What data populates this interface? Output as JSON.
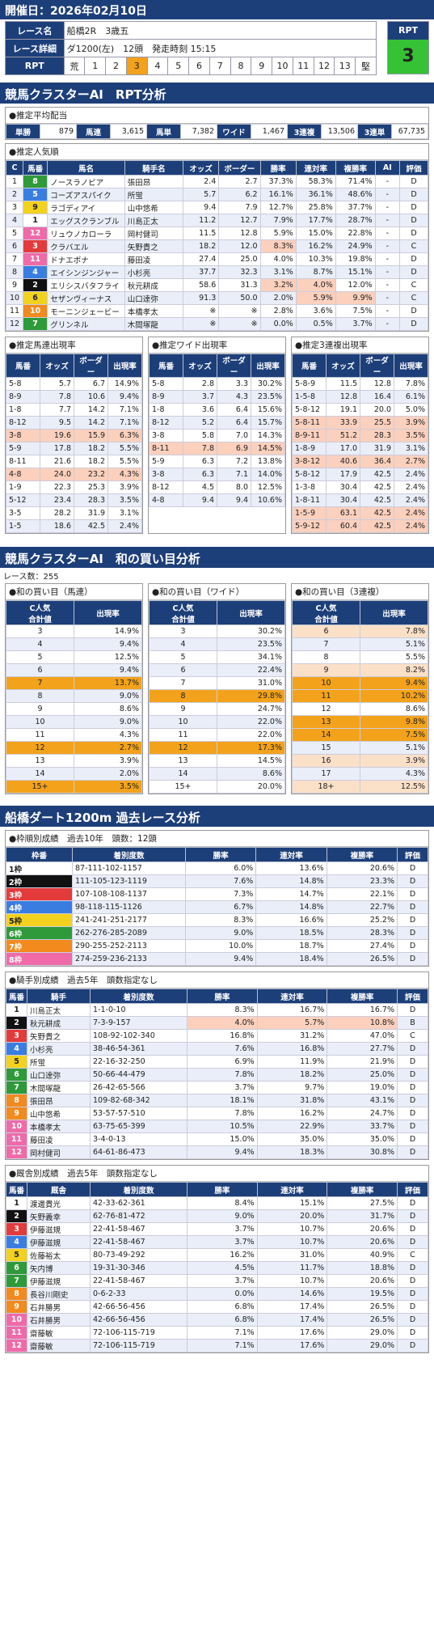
{
  "header": {
    "date": "開催日：2026年02月10日"
  },
  "race": {
    "label_name": "レース名",
    "name": "船橋2R　3歳五",
    "label_detail": "レース詳細",
    "detail": "ダ1200(左)　12頭　発走時刻 15:15",
    "label_rpt": "RPT",
    "scale_left": "荒",
    "scale_right": "堅",
    "scale": [
      "1",
      "2",
      "3",
      "4",
      "5",
      "6",
      "7",
      "8",
      "9",
      "10",
      "11",
      "12",
      "13"
    ],
    "selected": "3",
    "rpt_title": "RPT",
    "rpt_value": "3"
  },
  "sec1": {
    "title": "競馬クラスターAI　RPT分析"
  },
  "payout": {
    "title": "●推定平均配当",
    "items": [
      {
        "k": "単勝",
        "v": "879"
      },
      {
        "k": "馬連",
        "v": "3,615"
      },
      {
        "k": "馬単",
        "v": "7,382"
      },
      {
        "k": "ワイド",
        "v": "1,467"
      },
      {
        "k": "3連複",
        "v": "13,506"
      },
      {
        "k": "3連単",
        "v": "67,735"
      }
    ]
  },
  "pop": {
    "title": "●推定人気順",
    "headers": [
      "C",
      "馬番",
      "馬名",
      "騎手名",
      "オッズ",
      "ボーダー",
      "勝率",
      "連対率",
      "複勝率",
      "AI",
      "評価"
    ],
    "rows": [
      [
        "1",
        "8",
        "ノースラノビア",
        "張田昂",
        "2.4",
        "2.7",
        "37.3%",
        "58.3%",
        "71.4%",
        "-",
        "D"
      ],
      [
        "2",
        "5",
        "コーズアスパイク",
        "所蛍",
        "5.7",
        "6.2",
        "16.1%",
        "36.1%",
        "48.6%",
        "-",
        "D"
      ],
      [
        "3",
        "9",
        "ラゴディアイ",
        "山中悠希",
        "9.4",
        "7.9",
        "12.7%",
        "25.8%",
        "37.7%",
        "-",
        "D"
      ],
      [
        "4",
        "1",
        "エッグスクランブル",
        "川島正太",
        "11.2",
        "12.7",
        "7.9%",
        "17.7%",
        "28.7%",
        "-",
        "D"
      ],
      [
        "5",
        "12",
        "リュウノカローラ",
        "岡村健司",
        "11.5",
        "12.8",
        "5.9%",
        "15.0%",
        "22.8%",
        "-",
        "D"
      ],
      [
        "6",
        "3",
        "クラバエル",
        "矢野貴之",
        "18.2",
        "12.0",
        "8.3%",
        "16.2%",
        "24.9%",
        "-",
        "C"
      ],
      [
        "7",
        "11",
        "ドナエポナ",
        "藤田凌",
        "27.4",
        "25.0",
        "4.0%",
        "10.3%",
        "19.8%",
        "-",
        "D"
      ],
      [
        "8",
        "4",
        "エイシンジンジャー",
        "小杉亮",
        "37.7",
        "32.3",
        "3.1%",
        "8.7%",
        "15.1%",
        "-",
        "D"
      ],
      [
        "9",
        "2",
        "エリシスバタフライ",
        "秋元耕成",
        "58.6",
        "31.3",
        "3.2%",
        "4.0%",
        "12.0%",
        "-",
        "C"
      ],
      [
        "10",
        "6",
        "セザンヴィーナス",
        "山口達弥",
        "91.3",
        "50.0",
        "2.0%",
        "5.9%",
        "9.9%",
        "-",
        "C"
      ],
      [
        "11",
        "10",
        "モーニンジェービー",
        "本橋孝太",
        "※",
        "※",
        "2.8%",
        "3.6%",
        "7.5%",
        "-",
        "D"
      ],
      [
        "12",
        "7",
        "グリンネル",
        "木間塚龍",
        "※",
        "※",
        "0.0%",
        "0.5%",
        "3.7%",
        "-",
        "D"
      ]
    ]
  },
  "est3": [
    {
      "title": "●推定馬連出現率",
      "headers": [
        "馬番",
        "オッズ",
        "ボーダー",
        "出現率"
      ],
      "rows": [
        [
          "5-8",
          "5.7",
          "6.7",
          "14.9%"
        ],
        [
          "8-9",
          "7.8",
          "10.6",
          "9.4%"
        ],
        [
          "1-8",
          "7.7",
          "14.2",
          "7.1%"
        ],
        [
          "8-12",
          "9.5",
          "14.2",
          "7.1%"
        ],
        [
          "3-8",
          "19.6",
          "15.9",
          "6.3%"
        ],
        [
          "5-9",
          "17.8",
          "18.2",
          "5.5%"
        ],
        [
          "8-11",
          "21.6",
          "18.2",
          "5.5%"
        ],
        [
          "4-8",
          "24.0",
          "23.2",
          "4.3%"
        ],
        [
          "1-9",
          "22.3",
          "25.3",
          "3.9%"
        ],
        [
          "5-12",
          "23.4",
          "28.3",
          "3.5%"
        ],
        [
          "3-5",
          "28.2",
          "31.9",
          "3.1%"
        ],
        [
          "1-5",
          "18.6",
          "42.5",
          "2.4%"
        ]
      ]
    },
    {
      "title": "●推定ワイド出現率",
      "headers": [
        "馬番",
        "オッズ",
        "ボーダー",
        "出現率"
      ],
      "rows": [
        [
          "5-8",
          "2.8",
          "3.3",
          "30.2%"
        ],
        [
          "8-9",
          "3.7",
          "4.3",
          "23.5%"
        ],
        [
          "1-8",
          "3.6",
          "6.4",
          "15.6%"
        ],
        [
          "8-12",
          "5.2",
          "6.4",
          "15.7%"
        ],
        [
          "3-8",
          "5.8",
          "7.0",
          "14.3%"
        ],
        [
          "8-11",
          "7.8",
          "6.9",
          "14.5%"
        ],
        [
          "5-9",
          "6.3",
          "7.2",
          "13.8%"
        ],
        [
          "3-8",
          "6.3",
          "7.1",
          "14.0%"
        ],
        [
          "8-12",
          "4.5",
          "8.0",
          "12.5%"
        ],
        [
          "4-8",
          "9.4",
          "9.4",
          "10.6%"
        ]
      ]
    },
    {
      "title": "●推定3連複出現率",
      "headers": [
        "馬番",
        "オッズ",
        "ボーダー",
        "出現率"
      ],
      "rows": [
        [
          "5-8-9",
          "11.5",
          "12.8",
          "7.8%"
        ],
        [
          "1-5-8",
          "12.8",
          "16.4",
          "6.1%"
        ],
        [
          "5-8-12",
          "19.1",
          "20.0",
          "5.0%"
        ],
        [
          "5-8-11",
          "33.9",
          "25.5",
          "3.9%"
        ],
        [
          "8-9-11",
          "51.2",
          "28.3",
          "3.5%"
        ],
        [
          "1-8-9",
          "17.0",
          "31.9",
          "3.1%"
        ],
        [
          "3-8-12",
          "40.6",
          "36.4",
          "2.7%"
        ],
        [
          "5-8-12",
          "17.9",
          "42.5",
          "2.4%"
        ],
        [
          "1-3-8",
          "30.4",
          "42.5",
          "2.4%"
        ],
        [
          "1-8-11",
          "30.4",
          "42.5",
          "2.4%"
        ],
        [
          "1-5-9",
          "63.1",
          "42.5",
          "2.4%"
        ],
        [
          "5-9-12",
          "60.4",
          "42.5",
          "2.4%"
        ]
      ]
    }
  ],
  "sec2": {
    "title": "競馬クラスターAI　和の買い目分析",
    "count": "レース数：255"
  },
  "wa3": [
    {
      "title": "●和の買い目（馬連）",
      "headers": [
        "C人気\n合計値",
        "出現率"
      ],
      "rows": [
        [
          "3",
          "14.9%"
        ],
        [
          "4",
          "9.4%"
        ],
        [
          "5",
          "12.5%"
        ],
        [
          "6",
          "9.4%"
        ],
        [
          "7",
          "13.7%"
        ],
        [
          "8",
          "9.0%"
        ],
        [
          "9",
          "8.6%"
        ],
        [
          "10",
          "9.0%"
        ],
        [
          "11",
          "4.3%"
        ],
        [
          "12",
          "2.7%"
        ],
        [
          "13",
          "3.9%"
        ],
        [
          "14",
          "2.0%"
        ],
        [
          "15+",
          "3.5%"
        ]
      ]
    },
    {
      "title": "●和の買い目（ワイド）",
      "headers": [
        "C人気\n合計値",
        "出現率"
      ],
      "rows": [
        [
          "3",
          "30.2%"
        ],
        [
          "4",
          "23.5%"
        ],
        [
          "5",
          "34.1%"
        ],
        [
          "6",
          "22.4%"
        ],
        [
          "7",
          "31.0%"
        ],
        [
          "8",
          "29.8%"
        ],
        [
          "9",
          "24.7%"
        ],
        [
          "10",
          "22.0%"
        ],
        [
          "11",
          "22.0%"
        ],
        [
          "12",
          "17.3%"
        ],
        [
          "13",
          "14.5%"
        ],
        [
          "14",
          "8.6%"
        ],
        [
          "15+",
          "20.0%"
        ]
      ]
    },
    {
      "title": "●和の買い目（3連複）",
      "headers": [
        "C人気\n合計値",
        "出現率"
      ],
      "rows": [
        [
          "6",
          "7.8%"
        ],
        [
          "7",
          "5.1%"
        ],
        [
          "8",
          "5.5%"
        ],
        [
          "9",
          "8.2%"
        ],
        [
          "10",
          "9.4%"
        ],
        [
          "11",
          "10.2%"
        ],
        [
          "12",
          "8.6%"
        ],
        [
          "13",
          "9.8%"
        ],
        [
          "14",
          "7.5%"
        ],
        [
          "15",
          "5.1%"
        ],
        [
          "16",
          "3.9%"
        ],
        [
          "17",
          "4.3%"
        ],
        [
          "18+",
          "12.5%"
        ]
      ]
    }
  ],
  "sec3": {
    "title": "船橋ダート1200m 過去レース分析"
  },
  "waku": {
    "title": "●枠順別成績　過去10年　頭数：12頭",
    "headers": [
      "枠番",
      "着別度数",
      "勝率",
      "連対率",
      "複勝率",
      "評価"
    ],
    "rows": [
      [
        "1枠",
        "87-111-102-1157",
        "6.0%",
        "13.6%",
        "20.6%",
        "D"
      ],
      [
        "2枠",
        "111-105-123-1119",
        "7.6%",
        "14.8%",
        "23.3%",
        "D"
      ],
      [
        "3枠",
        "107-108-108-1137",
        "7.3%",
        "14.7%",
        "22.1%",
        "D"
      ],
      [
        "4枠",
        "98-118-115-1126",
        "6.7%",
        "14.8%",
        "22.7%",
        "D"
      ],
      [
        "5枠",
        "241-241-251-2177",
        "8.3%",
        "16.6%",
        "25.2%",
        "D"
      ],
      [
        "6枠",
        "262-276-285-2089",
        "9.0%",
        "18.5%",
        "28.3%",
        "D"
      ],
      [
        "7枠",
        "290-255-252-2113",
        "10.0%",
        "18.7%",
        "27.4%",
        "D"
      ],
      [
        "8枠",
        "274-259-236-2133",
        "9.4%",
        "18.4%",
        "26.5%",
        "D"
      ]
    ]
  },
  "jockey": {
    "title": "●騎手別成績　過去5年　頭数指定なし",
    "headers": [
      "馬番",
      "騎手",
      "着別度数",
      "勝率",
      "連対率",
      "複勝率",
      "評価"
    ],
    "rows": [
      [
        "1",
        "川島正太",
        "1-1-0-10",
        "8.3%",
        "16.7%",
        "16.7%",
        "D"
      ],
      [
        "2",
        "秋元耕成",
        "7-3-9-157",
        "4.0%",
        "5.7%",
        "10.8%",
        "B"
      ],
      [
        "3",
        "矢野貴之",
        "108-92-102-340",
        "16.8%",
        "31.2%",
        "47.0%",
        "C"
      ],
      [
        "4",
        "小杉亮",
        "38-46-54-361",
        "7.6%",
        "16.8%",
        "27.7%",
        "D"
      ],
      [
        "5",
        "所蛍",
        "22-16-32-250",
        "6.9%",
        "11.9%",
        "21.9%",
        "D"
      ],
      [
        "6",
        "山口達弥",
        "50-66-44-479",
        "7.8%",
        "18.2%",
        "25.0%",
        "D"
      ],
      [
        "7",
        "木間塚龍",
        "26-42-65-566",
        "3.7%",
        "9.7%",
        "19.0%",
        "D"
      ],
      [
        "8",
        "張田昂",
        "109-82-68-342",
        "18.1%",
        "31.8%",
        "43.1%",
        "D"
      ],
      [
        "9",
        "山中悠希",
        "53-57-57-510",
        "7.8%",
        "16.2%",
        "24.7%",
        "D"
      ],
      [
        "10",
        "本橋孝太",
        "63-75-65-399",
        "10.5%",
        "22.9%",
        "33.7%",
        "D"
      ],
      [
        "11",
        "藤田凌",
        "3-4-0-13",
        "15.0%",
        "35.0%",
        "35.0%",
        "D"
      ],
      [
        "12",
        "岡村健司",
        "64-61-86-473",
        "9.4%",
        "18.3%",
        "30.8%",
        "D"
      ]
    ]
  },
  "trainer": {
    "title": "●厩舎別成績　過去5年　頭数指定なし",
    "headers": [
      "馬番",
      "厩舎",
      "着別度数",
      "勝率",
      "連対率",
      "複勝率",
      "評価"
    ],
    "rows": [
      [
        "1",
        "渡邊貴光",
        "42-33-62-361",
        "8.4%",
        "15.1%",
        "27.5%",
        "D"
      ],
      [
        "2",
        "矢野義幸",
        "62-76-81-472",
        "9.0%",
        "20.0%",
        "31.7%",
        "D"
      ],
      [
        "3",
        "伊藤滋規",
        "22-41-58-467",
        "3.7%",
        "10.7%",
        "20.6%",
        "D"
      ],
      [
        "4",
        "伊藤滋規",
        "22-41-58-467",
        "3.7%",
        "10.7%",
        "20.6%",
        "D"
      ],
      [
        "5",
        "佐藤裕太",
        "80-73-49-292",
        "16.2%",
        "31.0%",
        "40.9%",
        "C"
      ],
      [
        "6",
        "矢内博",
        "19-31-30-346",
        "4.5%",
        "11.7%",
        "18.8%",
        "D"
      ],
      [
        "7",
        "伊藤滋規",
        "22-41-58-467",
        "3.7%",
        "10.7%",
        "20.6%",
        "D"
      ],
      [
        "8",
        "長谷川剛史",
        "0-6-2-33",
        "0.0%",
        "14.6%",
        "19.5%",
        "D"
      ],
      [
        "9",
        "石井勝男",
        "42-66-56-456",
        "6.8%",
        "17.4%",
        "26.5%",
        "D"
      ],
      [
        "10",
        "石井勝男",
        "42-66-56-456",
        "6.8%",
        "17.4%",
        "26.5%",
        "D"
      ],
      [
        "11",
        "齋藤敏",
        "72-106-115-719",
        "7.1%",
        "17.6%",
        "29.0%",
        "D"
      ],
      [
        "12",
        "齋藤敏",
        "72-106-115-719",
        "7.1%",
        "17.6%",
        "29.0%",
        "D"
      ]
    ]
  }
}
